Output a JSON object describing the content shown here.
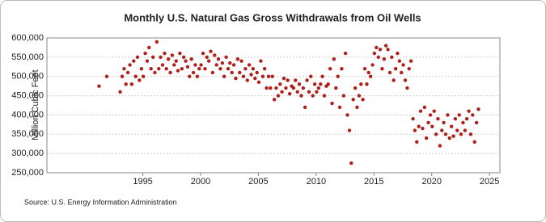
{
  "chart_data": {
    "type": "scatter",
    "title": "Monthly U.S. Natural Gas Gross Withdrawals from Oil Wells",
    "y_label": "Million Cubic Feet",
    "source": "Source: U.S. Energy Information Administration",
    "color": "#b0201a",
    "grid": true,
    "xlim": [
      1986.7,
      2025.9
    ],
    "xticks": [
      1995,
      2000,
      2005,
      2010,
      2015,
      2020,
      2025
    ],
    "ylim": [
      250000,
      600000
    ],
    "yticks": [
      {
        "value": 250000,
        "label": "250,000"
      },
      {
        "value": 300000,
        "label": "300,000"
      },
      {
        "value": 350000,
        "label": "350,000"
      },
      {
        "value": 400000,
        "label": "400,000"
      },
      {
        "value": 450000,
        "label": "450,000"
      },
      {
        "value": 500000,
        "label": "500,000"
      },
      {
        "value": 550000,
        "label": "550,000"
      },
      {
        "value": 600000,
        "label": "600,000"
      }
    ],
    "x": [
      1991.21,
      1991.88,
      1993.04,
      1993.21,
      1993.38,
      1993.54,
      1993.71,
      1993.88,
      1994.04,
      1994.21,
      1994.38,
      1994.54,
      1994.71,
      1994.88,
      1995.04,
      1995.21,
      1995.38,
      1995.54,
      1995.71,
      1995.88,
      1996.04,
      1996.21,
      1996.38,
      1996.54,
      1996.71,
      1996.88,
      1997.04,
      1997.21,
      1997.38,
      1997.54,
      1997.71,
      1997.88,
      1998.04,
      1998.21,
      1998.38,
      1998.54,
      1998.71,
      1998.88,
      1999.04,
      1999.21,
      1999.38,
      1999.54,
      1999.71,
      1999.88,
      2000.04,
      2000.21,
      2000.38,
      2000.54,
      2000.71,
      2000.88,
      2001.04,
      2001.21,
      2001.38,
      2001.54,
      2001.71,
      2001.88,
      2002.04,
      2002.21,
      2002.38,
      2002.54,
      2002.71,
      2002.88,
      2003.04,
      2003.21,
      2003.38,
      2003.54,
      2003.71,
      2003.88,
      2004.04,
      2004.21,
      2004.38,
      2004.54,
      2004.71,
      2004.88,
      2005.04,
      2005.21,
      2005.38,
      2005.54,
      2005.71,
      2005.88,
      2006.04,
      2006.21,
      2006.38,
      2006.54,
      2006.71,
      2006.88,
      2007.04,
      2007.21,
      2007.38,
      2007.54,
      2007.71,
      2007.88,
      2008.04,
      2008.21,
      2008.38,
      2008.54,
      2008.71,
      2008.88,
      2009.04,
      2009.21,
      2009.38,
      2009.54,
      2009.71,
      2009.88,
      2010.04,
      2010.21,
      2010.38,
      2010.54,
      2010.71,
      2010.88,
      2011.04,
      2011.21,
      2011.38,
      2011.54,
      2011.71,
      2011.88,
      2012.04,
      2012.21,
      2012.38,
      2012.54,
      2012.71,
      2012.88,
      2013.04,
      2013.21,
      2013.38,
      2013.54,
      2013.71,
      2013.88,
      2014.04,
      2014.21,
      2014.38,
      2014.54,
      2014.71,
      2014.88,
      2015.04,
      2015.21,
      2015.38,
      2015.54,
      2015.71,
      2015.88,
      2016.04,
      2016.21,
      2016.38,
      2016.54,
      2016.71,
      2016.88,
      2017.04,
      2017.21,
      2017.38,
      2017.54,
      2017.71,
      2017.88,
      2018.04,
      2018.21,
      2018.38,
      2018.54,
      2018.71,
      2018.88,
      2019.04,
      2019.21,
      2019.38,
      2019.54,
      2019.71,
      2019.88,
      2020.04,
      2020.21,
      2020.38,
      2020.54,
      2020.71,
      2020.88,
      2021.04,
      2021.21,
      2021.38,
      2021.54,
      2021.71,
      2021.88,
      2022.04,
      2022.21,
      2022.38,
      2022.54,
      2022.71,
      2022.88,
      2023.04,
      2023.21,
      2023.38,
      2023.54,
      2023.71,
      2023.88,
      2024.04
    ],
    "values": [
      475000,
      500000,
      460000,
      500000,
      520000,
      480000,
      510000,
      530000,
      480000,
      540000,
      500000,
      550000,
      490000,
      520000,
      500000,
      560000,
      540000,
      575000,
      520000,
      550000,
      510000,
      590000,
      520000,
      550000,
      530000,
      560000,
      520000,
      545000,
      510000,
      555000,
      530000,
      540000,
      515000,
      560000,
      520000,
      550000,
      540000,
      525000,
      500000,
      545000,
      510000,
      530000,
      500000,
      520000,
      530000,
      560000,
      520000,
      550000,
      540000,
      565000,
      510000,
      555000,
      530000,
      545000,
      520000,
      535000,
      500000,
      550000,
      520000,
      535000,
      510000,
      530000,
      495000,
      545000,
      510000,
      540000,
      500000,
      520000,
      490000,
      530000,
      505000,
      520000,
      495000,
      510000,
      485000,
      540000,
      500000,
      520000,
      470000,
      500000,
      470000,
      500000,
      440000,
      470000,
      450000,
      480000,
      460000,
      495000,
      470000,
      490000,
      455000,
      475000,
      470000,
      490000,
      460000,
      480000,
      450000,
      470000,
      420000,
      490000,
      460000,
      500000,
      450000,
      480000,
      460000,
      470000,
      480000,
      500000,
      450000,
      475000,
      480000,
      520000,
      430000,
      545000,
      470000,
      500000,
      420000,
      520000,
      450000,
      560000,
      400000,
      360000,
      275000,
      440000,
      470000,
      420000,
      450000,
      480000,
      440000,
      520000,
      480000,
      510000,
      500000,
      530000,
      560000,
      575000,
      550000,
      570000,
      520000,
      545000,
      580000,
      570000,
      510000,
      550000,
      490000,
      520000,
      560000,
      540000,
      510000,
      530000,
      490000,
      470000,
      520000,
      540000,
      390000,
      360000,
      330000,
      370000,
      410000,
      365000,
      420000,
      340000,
      380000,
      400000,
      370000,
      410000,
      350000,
      390000,
      320000,
      360000,
      380000,
      350000,
      400000,
      340000,
      370000,
      345000,
      390000,
      360000,
      400000,
      350000,
      380000,
      360000,
      390000,
      410000,
      350000,
      400000,
      330000,
      380000,
      415000
    ]
  }
}
